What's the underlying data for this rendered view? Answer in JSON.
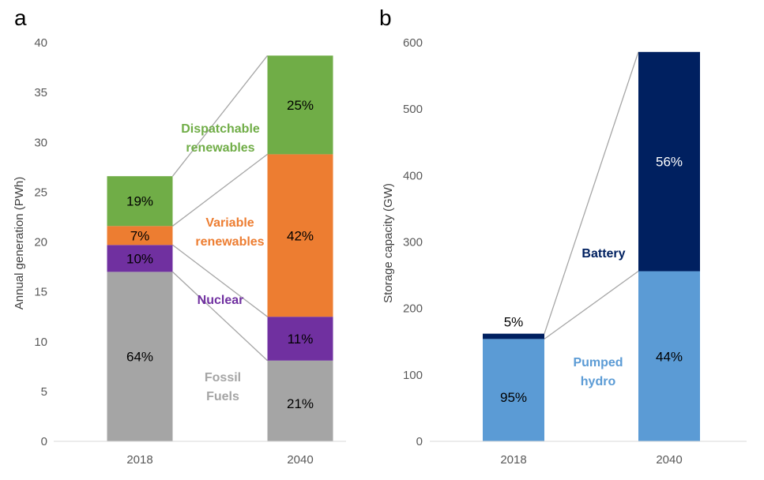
{
  "panels": {
    "a": {
      "letter": "a",
      "chart_id": 0,
      "colors": {
        "fossil": "#A5A5A5",
        "nuclear": "#7030A0",
        "variable": "#ED7D31",
        "dispatchable": "#70AD47"
      },
      "labels": {
        "dispatchable": [
          "Dispatchable",
          "renewables"
        ],
        "variable": [
          "Variable",
          "renewables"
        ],
        "nuclear": [
          "Nuclear"
        ],
        "fossil": [
          "Fossil",
          "Fuels"
        ]
      }
    },
    "b": {
      "letter": "b",
      "chart_id": 1,
      "colors": {
        "pumped": "#5B9BD5",
        "battery": "#002060"
      },
      "labels": {
        "battery": [
          "Battery"
        ],
        "pumped": [
          "Pumped",
          "hydro"
        ]
      }
    }
  },
  "chart_data": [
    {
      "type": "bar",
      "stacked": true,
      "title": "",
      "xlabel": "",
      "ylabel": "Annual generation (PWh)",
      "ylim": [
        0,
        40
      ],
      "yticks": [
        0,
        5,
        10,
        15,
        20,
        25,
        30,
        35,
        40
      ],
      "categories": [
        "2018",
        "2040"
      ],
      "series": [
        {
          "name": "Fossil Fuels",
          "key": "fossil",
          "values": [
            17.0,
            8.1
          ],
          "labels": [
            "64%",
            "21%"
          ]
        },
        {
          "name": "Nuclear",
          "key": "nuclear",
          "values": [
            2.7,
            4.4
          ],
          "labels": [
            "10%",
            "11%"
          ]
        },
        {
          "name": "Variable renewables",
          "key": "variable",
          "values": [
            1.9,
            16.3
          ],
          "labels": [
            "7%",
            "42%"
          ]
        },
        {
          "name": "Dispatchable renewables",
          "key": "dispatchable",
          "values": [
            5.0,
            9.9
          ],
          "labels": [
            "19%",
            "25%"
          ]
        }
      ]
    },
    {
      "type": "bar",
      "stacked": true,
      "title": "",
      "xlabel": "",
      "ylabel": "Storage capacity (GW)",
      "ylim": [
        0,
        600
      ],
      "yticks": [
        0,
        100,
        200,
        300,
        400,
        500,
        600
      ],
      "categories": [
        "2018",
        "2040"
      ],
      "series": [
        {
          "name": "Pumped hydro",
          "key": "pumped",
          "values": [
            154,
            256
          ],
          "labels": [
            "95%",
            "44%"
          ]
        },
        {
          "name": "Battery",
          "key": "battery",
          "values": [
            8,
            330
          ],
          "labels": [
            "5%",
            "56%"
          ]
        }
      ]
    }
  ]
}
